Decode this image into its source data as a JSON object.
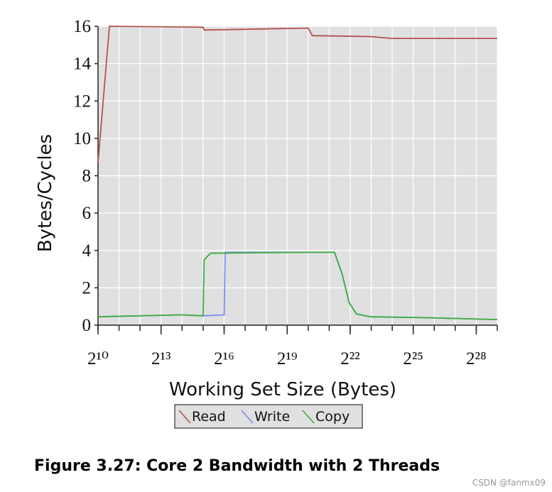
{
  "chart_data": {
    "type": "line",
    "xlabel": "Working Set Size (Bytes)",
    "ylabel": "Bytes/Cycles",
    "xscale": "log2",
    "xlim": [
      1024,
      536870912
    ],
    "ylim": [
      0,
      16
    ],
    "xticks": [
      {
        "value": 1024,
        "label": "2¹⁰"
      },
      {
        "value": 8192,
        "label": "2¹³"
      },
      {
        "value": 65536,
        "label": "2¹⁶"
      },
      {
        "value": 524288,
        "label": "2¹⁹"
      },
      {
        "value": 4194304,
        "label": "2²²"
      },
      {
        "value": 33554432,
        "label": "2²⁵"
      },
      {
        "value": 268435456,
        "label": "2²⁸"
      }
    ],
    "x_minor_ticks": [
      1024,
      2048,
      4096,
      8192,
      16384,
      32768,
      65536,
      131072,
      262144,
      524288,
      1048576,
      2097152,
      4194304,
      8388608,
      16777216,
      33554432,
      67108864,
      134217728,
      268435456,
      536870912
    ],
    "yticks": [
      0,
      2,
      4,
      6,
      8,
      10,
      12,
      14,
      16
    ],
    "grid": true,
    "legend": "bottom",
    "series": [
      {
        "name": "Read",
        "color": "#b5534f",
        "x": [
          1024,
          1489,
          32768,
          34000,
          1048576,
          1204498,
          8102816,
          16777216,
          536870912
        ],
        "values": [
          8.7,
          16,
          15.95,
          15.8,
          15.9,
          15.5,
          15.45,
          15.35,
          15.35
        ]
      },
      {
        "name": "Write",
        "color": "#7b8cf0",
        "x": [
          1024,
          16384,
          32768,
          65536,
          67850,
          1048576,
          2493968,
          3178617,
          4051408,
          5163607,
          8102816,
          52653616,
          536870912
        ],
        "values": [
          0.45,
          0.55,
          0.5,
          0.55,
          3.9,
          3.9,
          3.9,
          2.8,
          1.2,
          0.6,
          0.45,
          0.4,
          0.3
        ]
      },
      {
        "name": "Copy",
        "color": "#3dae3d",
        "x": [
          1024,
          16384,
          32768,
          33925,
          41766,
          1048576,
          2493968,
          3178617,
          4051408,
          5163607,
          8102816,
          52653616,
          536870912
        ],
        "values": [
          0.45,
          0.55,
          0.5,
          3.5,
          3.85,
          3.9,
          3.9,
          2.8,
          1.2,
          0.6,
          0.45,
          0.4,
          0.3
        ]
      }
    ]
  },
  "caption": "Figure 3.27: Core 2 Bandwidth with 2 Threads",
  "watermark": "CSDN @fanmx09"
}
